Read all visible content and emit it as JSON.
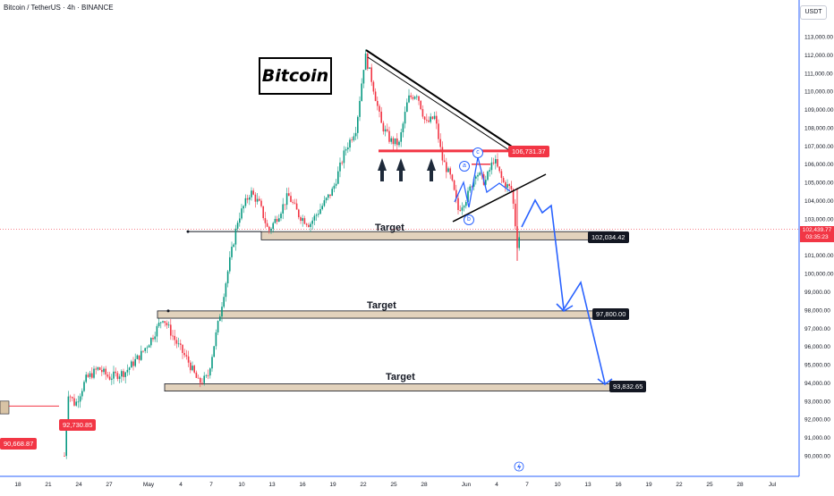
{
  "header": {
    "symbol": "Bitcoin / TetherUS · 4h · BINANCE"
  },
  "currency_button": "USDT",
  "title_box": "Bitcoin",
  "labels": {
    "target1": "Target",
    "target2": "Target",
    "target3": "Target",
    "wave_a": "a",
    "wave_b": "b",
    "wave_c": "c"
  },
  "price_tags": {
    "resistance": "106,731.37",
    "target1": "102,034.42",
    "target2": "97,800.00",
    "target3": "93,832.65",
    "left1": "92,730.85",
    "left2": "90,668.87",
    "current": "102,439.77",
    "countdown": "03:35:23"
  },
  "colors": {
    "up": "#089981",
    "down": "#f23645",
    "zone_fill": "#d8c3a5",
    "zone_border": "#131722",
    "projection": "#2962ff",
    "resistance": "#f23645"
  },
  "chart_data": {
    "type": "candlestick",
    "y_axis": {
      "ticks": [
        "113,000.00",
        "112,000.00",
        "111,000.00",
        "110,000.00",
        "109,000.00",
        "108,000.00",
        "107,000.00",
        "106,000.00",
        "105,000.00",
        "104,000.00",
        "103,000.00",
        "101,000.00",
        "100,000.00",
        "99,000.00",
        "98,000.00",
        "97,000.00",
        "96,000.00",
        "95,000.00",
        "94,000.00",
        "93,000.00",
        "92,000.00",
        "91,000.00",
        "90,000.00"
      ],
      "range": [
        89300,
        114700
      ]
    },
    "x_axis": {
      "ticks": [
        "18",
        "21",
        "24",
        "27",
        "May",
        "4",
        "7",
        "10",
        "13",
        "16",
        "19",
        "22",
        "25",
        "28",
        "Jun",
        "4",
        "7",
        "10",
        "13",
        "16",
        "19",
        "22",
        "25",
        "28",
        "Jul"
      ]
    },
    "key_prices": {
      "resistance": 106731.37,
      "target1": 102034.42,
      "target2": 97800.0,
      "target3": 93832.65,
      "current": 102439.77
    },
    "annotations": [
      "Bitcoin",
      "Target",
      "Target",
      "Target",
      "a",
      "b",
      "c"
    ]
  }
}
